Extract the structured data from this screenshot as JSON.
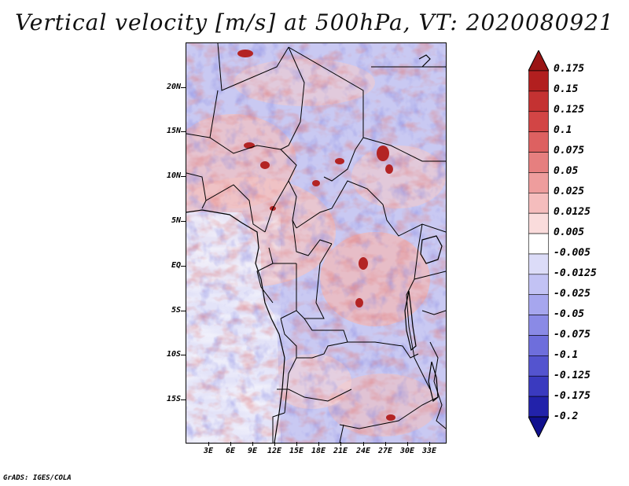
{
  "title": "Vertical velocity [m/s] at 500hPa, VT: 2020080921",
  "map": {
    "variable": "Vertical velocity",
    "units": "m/s",
    "level": "500hPa",
    "valid_time": "2020080921",
    "lat_range": [
      -20,
      24
    ],
    "lon_range": [
      0,
      35
    ],
    "lat_labels": [
      {
        "text": "20N",
        "value": 20
      },
      {
        "text": "15N",
        "value": 15
      },
      {
        "text": "10N",
        "value": 10
      },
      {
        "text": "5N",
        "value": 5
      },
      {
        "text": "EQ",
        "value": 0
      },
      {
        "text": "5S",
        "value": -5
      },
      {
        "text": "10S",
        "value": -10
      },
      {
        "text": "15S",
        "value": -15
      }
    ],
    "lon_labels": [
      {
        "text": "3E",
        "value": 3
      },
      {
        "text": "6E",
        "value": 6
      },
      {
        "text": "9E",
        "value": 9
      },
      {
        "text": "12E",
        "value": 12
      },
      {
        "text": "15E",
        "value": 15
      },
      {
        "text": "18E",
        "value": 18
      },
      {
        "text": "21E",
        "value": 21
      },
      {
        "text": "24E",
        "value": 24
      },
      {
        "text": "27E",
        "value": 27
      },
      {
        "text": "30E",
        "value": 30
      },
      {
        "text": "33E",
        "value": 33
      }
    ]
  },
  "colorbar": {
    "labels": [
      "0.175",
      "0.15",
      "0.125",
      "0.1",
      "0.075",
      "0.05",
      "0.025",
      "0.0125",
      "0.005",
      "-0.005",
      "-0.0125",
      "-0.025",
      "-0.05",
      "-0.075",
      "-0.1",
      "-0.125",
      "-0.175",
      "-0.2"
    ],
    "colors": [
      "#9a1515",
      "#b21f1f",
      "#c43232",
      "#d24545",
      "#dd6161",
      "#e67f7f",
      "#ee9d9d",
      "#f5bdbd",
      "#fadcdc",
      "#ffffff",
      "#dcdcf8",
      "#c2c2f4",
      "#a6a6ee",
      "#8a8ae6",
      "#6e6edc",
      "#5454cf",
      "#3a3abf",
      "#2222aa",
      "#10108e"
    ]
  },
  "credit": "GrADS: IGES/COLA"
}
